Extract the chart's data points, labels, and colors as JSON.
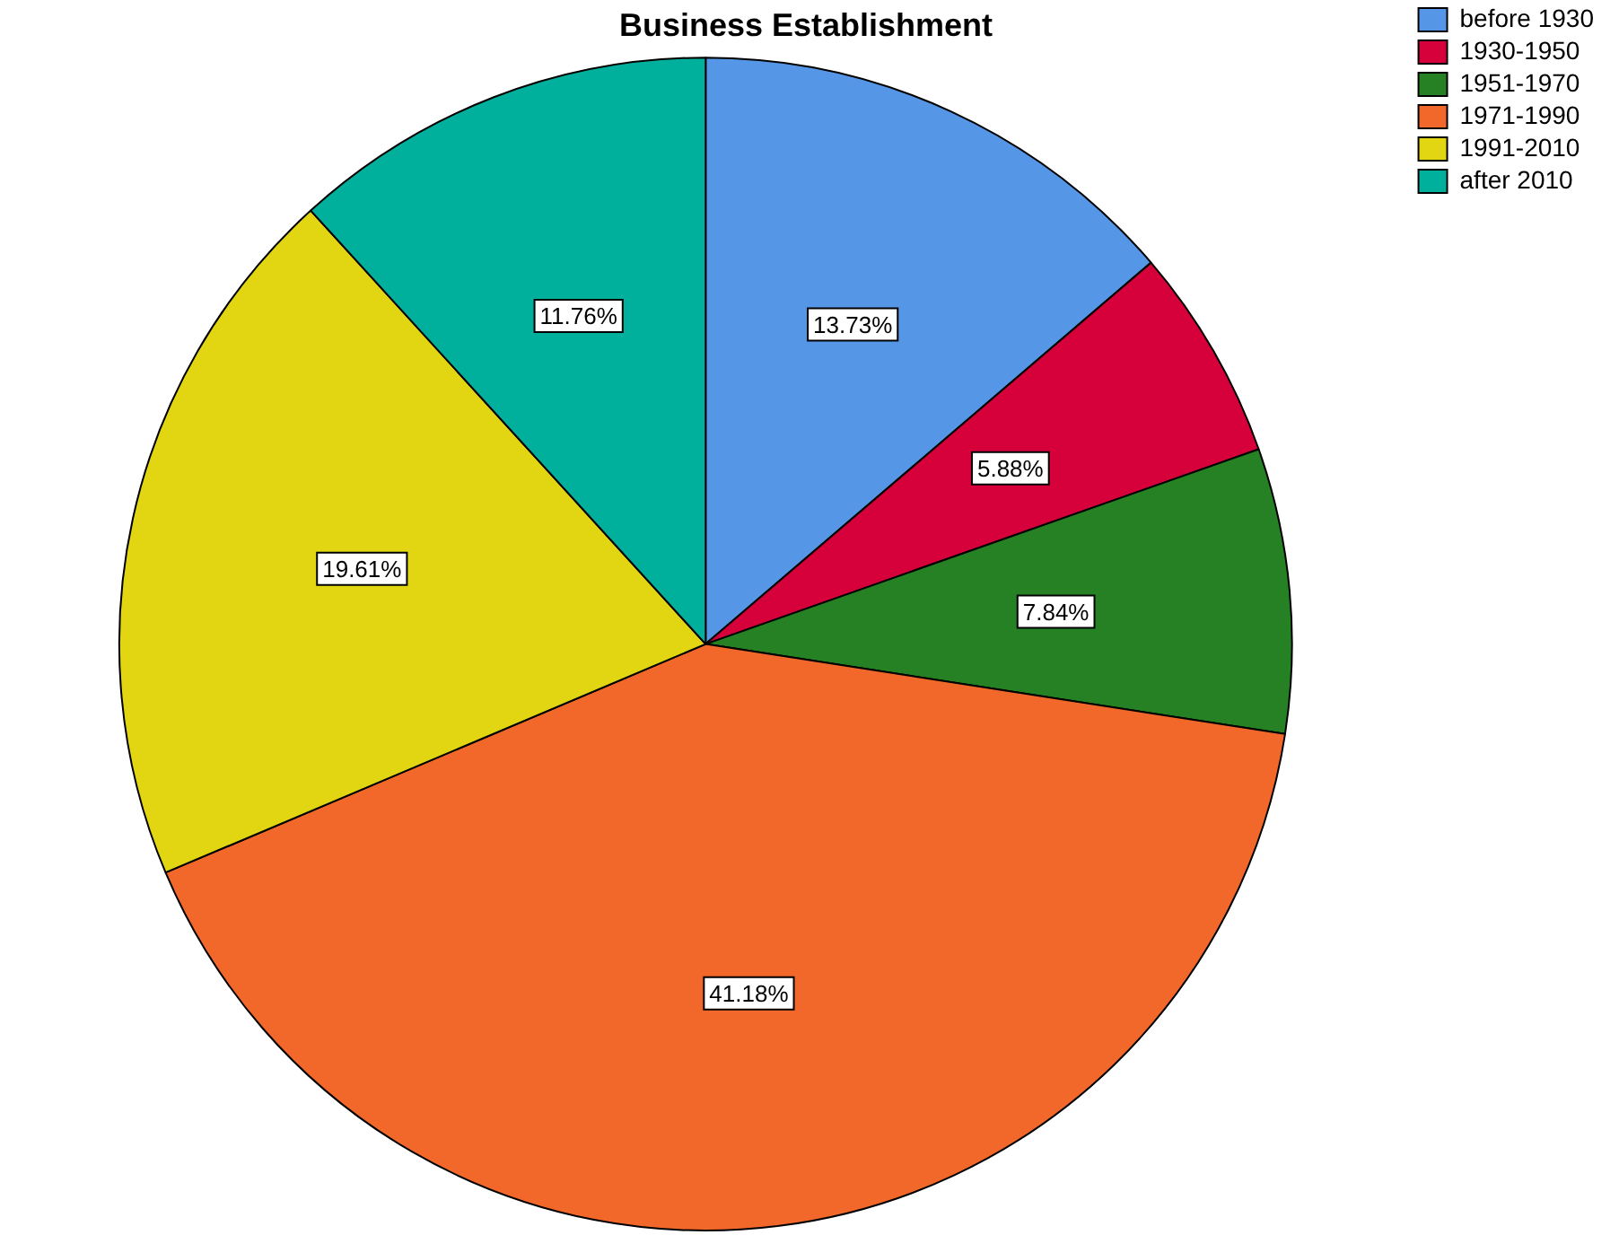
{
  "chart_data": {
    "type": "pie",
    "title": "Business Establishment",
    "categories": [
      "before 1930",
      "1930-1950",
      "1951-1970",
      "1971-1990",
      "1991-2010",
      "after 2010"
    ],
    "values": [
      13.73,
      5.88,
      7.84,
      41.18,
      19.61,
      11.76
    ],
    "colors": [
      "#5596e6",
      "#d6003a",
      "#268024",
      "#f2672a",
      "#e2d511",
      "#00b09c"
    ],
    "value_labels": [
      "13.73%",
      "5.88%",
      "7.84%",
      "41.18%",
      "19.61%",
      "11.76%"
    ],
    "legend": "top right"
  }
}
